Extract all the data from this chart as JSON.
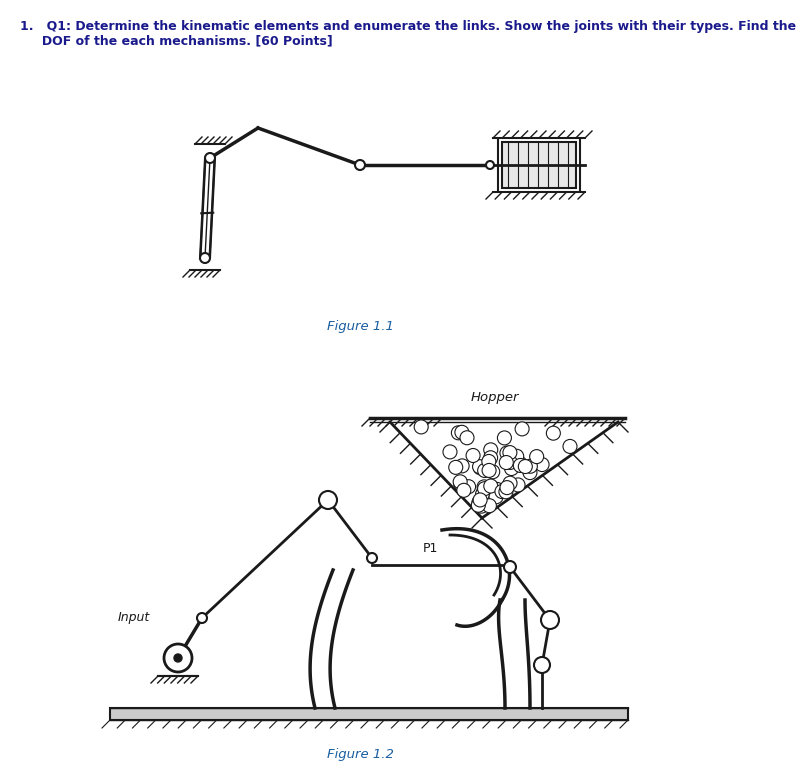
{
  "title_line1": "1.   Q1: Determine the kinematic elements and enumerate the links. Show the joints with their types. Find the",
  "title_line2": "     DOF of the each mechanisms. [60 Points]",
  "fig11_caption": "Figure 1.1",
  "fig12_caption": "Figure 1.2",
  "input_label": "Input",
  "hopper_label": "Hopper",
  "p1_label": "P1",
  "bg_color": "#ffffff",
  "line_color": "#1a1a1a",
  "title_color": "#1a1a8c",
  "caption_color": "#1a5fa0",
  "fig_width": 7.14,
  "fig_height": 7.6
}
